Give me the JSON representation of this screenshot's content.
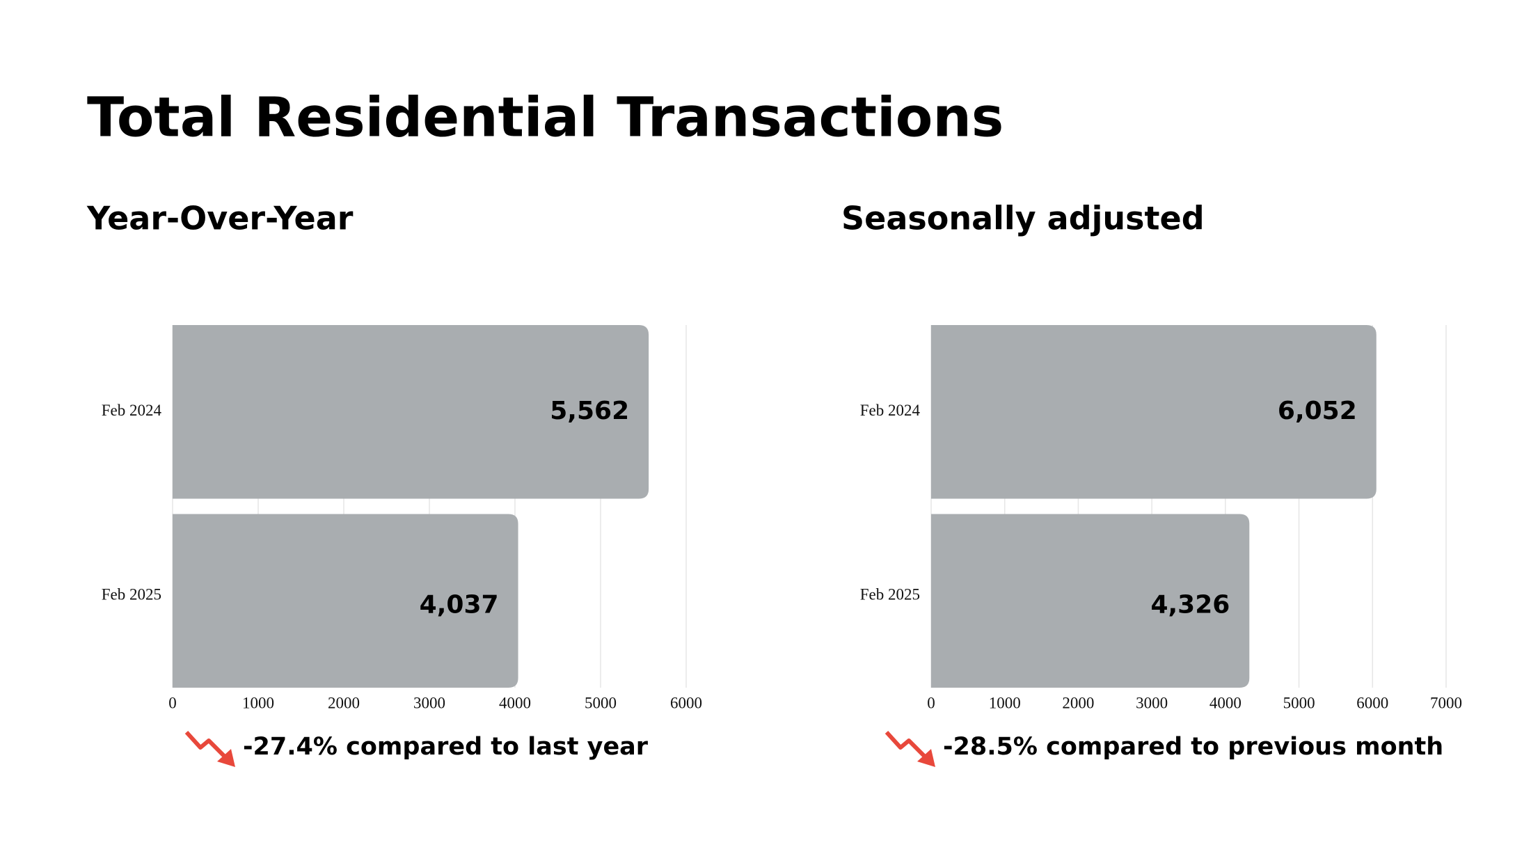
{
  "title": "Total Residential Transactions",
  "chart_data": [
    {
      "type": "bar",
      "orientation": "horizontal",
      "subtitle": "Year-Over-Year",
      "categories": [
        "Feb 2024",
        "Feb 2025"
      ],
      "values": [
        5562,
        4037
      ],
      "value_labels": [
        "5,562",
        "4,037"
      ],
      "color": "#a9adb0",
      "xlim": [
        0,
        6000
      ],
      "xticks": [
        0,
        1000,
        2000,
        3000,
        4000,
        5000,
        6000
      ],
      "grid": true,
      "annotation": "-27.4% compared to last year"
    },
    {
      "type": "bar",
      "orientation": "horizontal",
      "subtitle": "Seasonally adjusted",
      "categories": [
        "Feb 2024",
        "Feb 2025"
      ],
      "values": [
        6052,
        4326
      ],
      "value_labels": [
        "6,052",
        "4,326"
      ],
      "color": "#a9adb0",
      "xlim": [
        0,
        7000
      ],
      "xticks": [
        0,
        1000,
        2000,
        3000,
        4000,
        5000,
        6000,
        7000
      ],
      "grid": true,
      "annotation": "-28.5% compared to previous month"
    }
  ]
}
